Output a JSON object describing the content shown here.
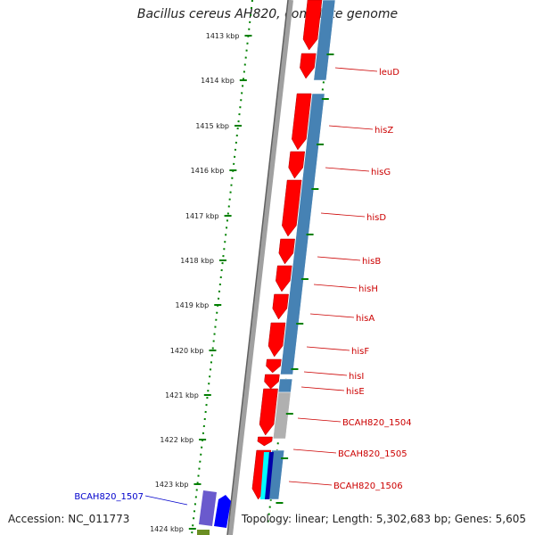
{
  "title": "Bacillus cereus AH820, complete genome",
  "accession": "Accession: NC_011773",
  "summary": "Topology: linear; Length: 5,302,683 bp; Genes: 5,605",
  "colors": {
    "forward_gene": "#ff0000",
    "reverse_gene": "#0000ff",
    "cds_band": "#4682b4",
    "backbone": "#808080",
    "tick": "#008000",
    "gene_label": "#cc0000",
    "reverse_label": "#0000cc"
  },
  "ticks": [
    {
      "label": "1413 kbp"
    },
    {
      "label": "1414 kbp"
    },
    {
      "label": "1415 kbp"
    },
    {
      "label": "1416 kbp"
    },
    {
      "label": "1417 kbp"
    },
    {
      "label": "1418 kbp"
    },
    {
      "label": "1419 kbp"
    },
    {
      "label": "1420 kbp"
    },
    {
      "label": "1421 kbp"
    },
    {
      "label": "1422 kbp"
    },
    {
      "label": "1423 kbp"
    },
    {
      "label": "1424 kbp"
    }
  ],
  "genes": [
    {
      "name": "leuD",
      "strand": "forward"
    },
    {
      "name": "hisZ",
      "strand": "forward"
    },
    {
      "name": "hisG",
      "strand": "forward"
    },
    {
      "name": "hisD",
      "strand": "forward"
    },
    {
      "name": "hisB",
      "strand": "forward"
    },
    {
      "name": "hisH",
      "strand": "forward"
    },
    {
      "name": "hisA",
      "strand": "forward"
    },
    {
      "name": "hisF",
      "strand": "forward"
    },
    {
      "name": "hisI",
      "strand": "forward"
    },
    {
      "name": "hisE",
      "strand": "forward"
    },
    {
      "name": "BCAH820_1504",
      "strand": "forward"
    },
    {
      "name": "BCAH820_1505",
      "strand": "forward"
    },
    {
      "name": "BCAH820_1506",
      "strand": "forward"
    },
    {
      "name": "BCAH820_1507",
      "strand": "reverse"
    }
  ]
}
